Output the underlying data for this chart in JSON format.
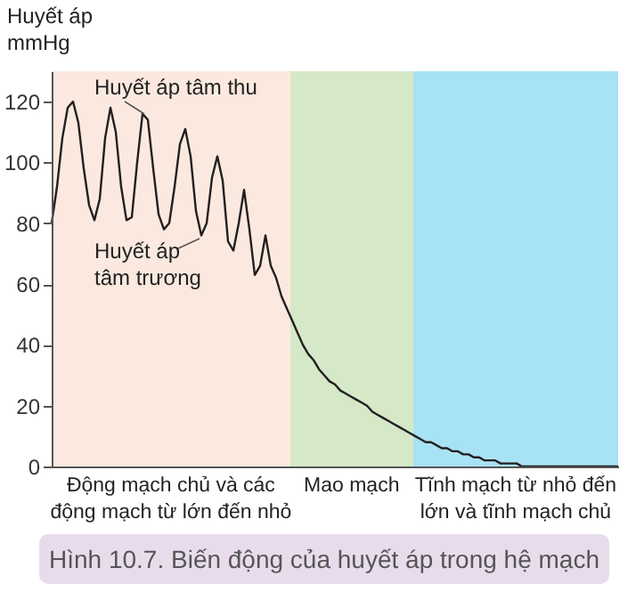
{
  "chart_data": {
    "type": "line",
    "ylabel": "Huyết áp mmHg",
    "categories": [
      null,
      null,
      null,
      null,
      null,
      null,
      null,
      null,
      null,
      null,
      null,
      null,
      null,
      null,
      null,
      null,
      null,
      null,
      null,
      null,
      null,
      null,
      null,
      null,
      null,
      null,
      null,
      null,
      null,
      null,
      null,
      null,
      null,
      null,
      null,
      null,
      null,
      null,
      null,
      null,
      null,
      null,
      null,
      null,
      null,
      null,
      null,
      null,
      null,
      null,
      null,
      null,
      null,
      null,
      null,
      null,
      null,
      null,
      null,
      null,
      null,
      null,
      null,
      null,
      null,
      null,
      null,
      null,
      null,
      null,
      null,
      null,
      null,
      null,
      null,
      null,
      null,
      null,
      null,
      null,
      null,
      null,
      null,
      null,
      null,
      null,
      null,
      null,
      null,
      null,
      null,
      null,
      null,
      null,
      null,
      null,
      null,
      null,
      null,
      null,
      null,
      null,
      null,
      null,
      null,
      null,
      null
    ],
    "series": [
      {
        "color": "#231f20",
        "values": [
          80,
          92,
          108,
          118,
          120,
          113,
          98,
          86,
          81,
          88,
          108,
          118,
          110,
          92,
          81,
          82,
          100,
          116,
          114,
          98,
          83,
          78,
          80,
          92,
          106,
          111,
          102,
          84,
          76,
          80,
          95,
          102,
          94,
          74,
          71,
          80,
          91,
          78,
          63,
          66,
          76,
          66,
          62,
          56,
          52,
          48,
          44,
          40,
          37,
          35,
          32,
          30,
          28,
          27,
          25,
          24,
          23,
          22,
          21,
          20,
          18,
          17,
          16,
          15,
          14,
          13,
          12,
          11,
          10,
          9,
          8,
          8,
          7,
          6,
          6,
          5,
          5,
          4,
          4,
          3,
          3,
          2,
          2,
          2,
          1,
          1,
          1,
          1,
          0,
          0,
          0,
          0,
          0,
          0,
          0,
          0,
          0,
          0,
          0,
          0,
          0,
          0,
          0,
          0,
          0,
          0,
          0
        ]
      }
    ],
    "ylim": [
      0,
      130
    ],
    "yticks": [
      0,
      20,
      40,
      60,
      80,
      100,
      120
    ],
    "tick_labels": "y",
    "grid": false,
    "annotations": [
      "Huyết áp tâm thu",
      "Huyết áp tâm trương",
      "Động mạch chủ và các động mạch từ lớn đến nhỏ",
      "Mao mạch",
      "Tĩnh mạch từ nhỏ đến lớn và tĩnh mạch chủ",
      "Hình 10.7. Biến động của huyết áp trong hệ mạch"
    ]
  }
}
